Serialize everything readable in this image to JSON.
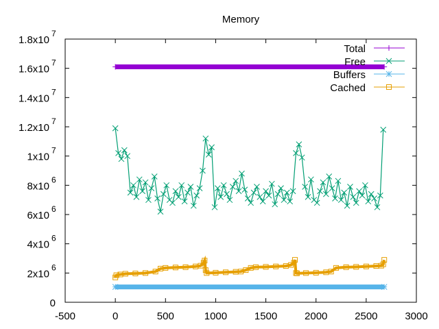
{
  "chart_data": {
    "type": "line",
    "title": "Memory",
    "xlabel": "",
    "ylabel": "",
    "xlim": [
      -500,
      3000
    ],
    "ylim": [
      0,
      18000000
    ],
    "grid": false,
    "legend_position": "top-right",
    "x_ticks": [
      {
        "value": -500,
        "label": "-500"
      },
      {
        "value": 0,
        "label": "0"
      },
      {
        "value": 500,
        "label": "500"
      },
      {
        "value": 1000,
        "label": "1000"
      },
      {
        "value": 1500,
        "label": "1500"
      },
      {
        "value": 2000,
        "label": "2000"
      },
      {
        "value": 2500,
        "label": "2500"
      },
      {
        "value": 3000,
        "label": "3000"
      }
    ],
    "y_ticks": [
      {
        "value": 0,
        "mant": "0",
        "exp": ""
      },
      {
        "value": 2000000,
        "mant": "2x10",
        "exp": "6"
      },
      {
        "value": 4000000,
        "mant": "4x10",
        "exp": "6"
      },
      {
        "value": 6000000,
        "mant": "6x10",
        "exp": "6"
      },
      {
        "value": 8000000,
        "mant": "8x10",
        "exp": "6"
      },
      {
        "value": 10000000,
        "mant": "1x10",
        "exp": "7"
      },
      {
        "value": 12000000,
        "mant": "1.2x10",
        "exp": "7"
      },
      {
        "value": 14000000,
        "mant": "1.4x10",
        "exp": "7"
      },
      {
        "value": 16000000,
        "mant": "1.6x10",
        "exp": "7"
      },
      {
        "value": 18000000,
        "mant": "1.8x10",
        "exp": "7"
      }
    ],
    "series": [
      {
        "name": "Total",
        "color": "#9400d3",
        "marker": "plus",
        "x": [
          0,
          2680
        ],
        "y": [
          16100000,
          16100000
        ],
        "dense": true
      },
      {
        "name": "Free",
        "color": "#009e73",
        "marker": "cross",
        "x_start": 0,
        "x_step": 30,
        "y_millions": [
          11.9,
          10.2,
          9.8,
          10.4,
          10.0,
          7.5,
          8.0,
          7.2,
          8.4,
          7.6,
          8.2,
          7.0,
          7.8,
          8.6,
          7.1,
          6.2,
          7.4,
          8.0,
          7.0,
          6.8,
          7.6,
          7.2,
          8.0,
          6.9,
          7.5,
          7.9,
          6.6,
          7.3,
          7.8,
          9.0,
          11.2,
          10.1,
          10.6,
          6.5,
          7.8,
          7.2,
          8.0,
          7.4,
          7.0,
          7.9,
          8.3,
          7.6,
          8.8,
          7.7,
          7.1,
          6.8,
          7.5,
          7.9,
          7.2,
          6.9,
          7.6,
          7.3,
          8.1,
          6.7,
          7.4,
          7.8,
          7.0,
          7.5,
          6.9,
          7.6,
          10.2,
          10.8,
          9.9,
          7.9,
          7.2,
          8.4,
          7.0,
          6.8,
          7.6,
          8.2,
          7.4,
          8.6,
          7.8,
          7.1,
          8.3,
          7.0,
          7.5,
          6.6,
          7.9,
          7.2,
          6.8,
          7.6,
          7.3,
          8.0,
          6.9,
          7.4,
          7.1,
          6.5,
          7.3,
          11.8
        ]
      },
      {
        "name": "Buffers",
        "color": "#56b4e9",
        "marker": "star",
        "x": [
          0,
          2680
        ],
        "y": [
          1050000,
          1050000
        ],
        "dense": true
      },
      {
        "name": "Cached",
        "color": "#e69f00",
        "marker": "square",
        "x": [
          0,
          10,
          50,
          100,
          200,
          300,
          400,
          450,
          500,
          600,
          700,
          800,
          850,
          880,
          890,
          900,
          910,
          1000,
          1100,
          1200,
          1250,
          1300,
          1350,
          1400,
          1500,
          1600,
          1700,
          1750,
          1780,
          1790,
          1800,
          1810,
          1900,
          2000,
          2100,
          2150,
          2200,
          2300,
          2400,
          2500,
          2600,
          2650,
          2670,
          2680
        ],
        "y_millions": [
          1.7,
          1.85,
          1.9,
          1.95,
          1.97,
          2.0,
          2.1,
          2.3,
          2.35,
          2.38,
          2.4,
          2.45,
          2.5,
          2.7,
          2.85,
          2.2,
          2.0,
          2.02,
          2.05,
          2.08,
          2.1,
          2.2,
          2.35,
          2.4,
          2.42,
          2.45,
          2.48,
          2.55,
          2.7,
          2.9,
          2.0,
          1.98,
          2.0,
          2.02,
          2.05,
          2.1,
          2.35,
          2.4,
          2.42,
          2.45,
          2.48,
          2.5,
          2.6,
          2.9
        ]
      }
    ]
  }
}
